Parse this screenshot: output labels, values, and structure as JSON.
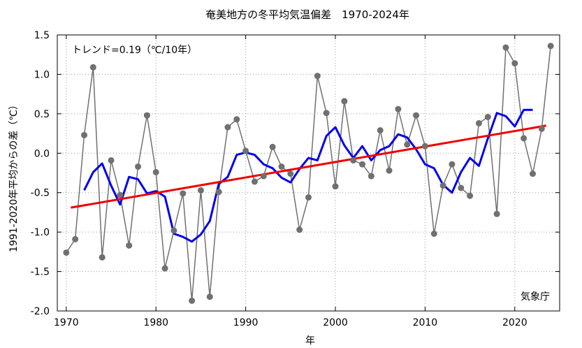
{
  "chart_data": {
    "type": "line",
    "title": "奄美地方の冬平均気温偏差　1970-2024年",
    "xlabel": "年",
    "ylabel": "1991-2020年平均からの差（℃）",
    "annotation": "トレンド=0.19（℃/10年）",
    "credit": "気象庁",
    "xlim": [
      1969,
      2025
    ],
    "ylim": [
      -2.0,
      1.5
    ],
    "xticks": [
      1970,
      1980,
      1990,
      2000,
      2010,
      2020
    ],
    "yticks": [
      -2.0,
      -1.5,
      -1.0,
      -0.5,
      0.0,
      0.5,
      1.0,
      1.5
    ],
    "ytick_labels": [
      "-2.0",
      "-1.5",
      "-1.0",
      "-0.5",
      "0.0",
      "0.5",
      "1.0",
      "1.5"
    ],
    "grid": true,
    "colors": {
      "annual": "#707070",
      "moving_avg": "#0000ee",
      "trend": "#ee0000"
    },
    "series": [
      {
        "role": "annual",
        "x": [
          1970,
          1971,
          1972,
          1973,
          1974,
          1975,
          1976,
          1977,
          1978,
          1979,
          1980,
          1981,
          1982,
          1983,
          1984,
          1985,
          1986,
          1987,
          1988,
          1989,
          1990,
          1991,
          1992,
          1993,
          1994,
          1995,
          1996,
          1997,
          1998,
          1999,
          2000,
          2001,
          2002,
          2003,
          2004,
          2005,
          2006,
          2007,
          2008,
          2009,
          2010,
          2011,
          2012,
          2013,
          2014,
          2015,
          2016,
          2017,
          2018,
          2019,
          2020,
          2021,
          2022,
          2023,
          2024
        ],
        "values": [
          -1.26,
          -1.09,
          0.23,
          1.09,
          -1.32,
          -0.09,
          -0.53,
          -1.17,
          -0.17,
          0.48,
          -0.24,
          -1.46,
          -0.98,
          -0.51,
          -1.87,
          -0.47,
          -1.82,
          -0.49,
          0.33,
          0.43,
          0.03,
          -0.36,
          -0.29,
          0.08,
          -0.17,
          -0.26,
          -0.97,
          -0.56,
          0.98,
          0.51,
          -0.42,
          0.66,
          -0.09,
          -0.14,
          -0.29,
          0.29,
          -0.22,
          0.56,
          0.11,
          0.48,
          0.09,
          -1.02,
          -0.41,
          -0.14,
          -0.44,
          -0.54,
          0.38,
          0.46,
          -0.77,
          1.34,
          1.14,
          0.19,
          -0.26,
          0.31,
          1.36
        ]
      },
      {
        "role": "moving_avg",
        "x": [
          1972,
          1973,
          1974,
          1975,
          1976,
          1977,
          1978,
          1979,
          1980,
          1981,
          1982,
          1983,
          1984,
          1985,
          1986,
          1987,
          1988,
          1989,
          1990,
          1991,
          1992,
          1993,
          1994,
          1995,
          1996,
          1997,
          1998,
          1999,
          2000,
          2001,
          2002,
          2003,
          2004,
          2005,
          2006,
          2007,
          2008,
          2009,
          2010,
          2011,
          2012,
          2013,
          2014,
          2015,
          2016,
          2017,
          2018,
          2019,
          2020,
          2021,
          2022
        ],
        "values": [
          -0.47,
          -0.24,
          -0.13,
          -0.41,
          -0.65,
          -0.3,
          -0.33,
          -0.51,
          -0.48,
          -0.55,
          -1.02,
          -1.06,
          -1.12,
          -1.03,
          -0.86,
          -0.39,
          -0.3,
          -0.02,
          0.01,
          -0.02,
          -0.14,
          -0.19,
          -0.31,
          -0.37,
          -0.2,
          -0.06,
          -0.09,
          0.22,
          0.33,
          0.1,
          -0.06,
          0.09,
          -0.09,
          0.04,
          0.09,
          0.24,
          0.2,
          0.05,
          -0.14,
          -0.19,
          -0.4,
          -0.5,
          -0.24,
          -0.06,
          -0.16,
          0.19,
          0.51,
          0.47,
          0.34,
          0.55,
          0.55
        ]
      },
      {
        "role": "trend",
        "x": [
          1970.5,
          2023.5
        ],
        "values": [
          -0.69,
          0.35
        ]
      }
    ]
  }
}
